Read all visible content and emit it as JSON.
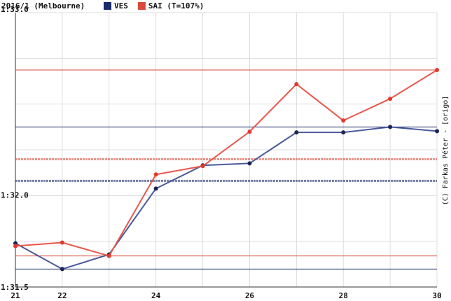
{
  "chart_data": {
    "type": "line",
    "title": "2016/1 (Melbourne)",
    "credit": "(C) Farkas Péter - [origo]",
    "x": [
      21,
      22,
      23,
      24,
      25,
      26,
      27,
      28,
      29,
      30
    ],
    "series": [
      {
        "name": "VES",
        "color": "#4a5a9a",
        "marker_color": "#1a2456",
        "ref_color": "#1a2a6a",
        "values": [
          91.739,
          91.598,
          91.678,
          92.038,
          92.165,
          92.176,
          92.345,
          92.345,
          92.375,
          92.352
        ],
        "max": 92.375,
        "min": 91.598,
        "mean": 92.08
      },
      {
        "name": "SAI (T=107%)",
        "color": "#e8564a",
        "marker_color": "#e03a2e",
        "ref_color": "#d84a3a",
        "values": [
          91.724,
          91.743,
          91.67,
          92.115,
          92.161,
          92.349,
          92.609,
          92.41,
          92.529,
          92.686
        ],
        "max": 92.686,
        "min": 91.67,
        "mean": 92.199
      }
    ],
    "xlim": [
      21,
      30
    ],
    "xticks": [
      21,
      22,
      24,
      26,
      28,
      30
    ],
    "minor_xticks": [
      23,
      25,
      27,
      29
    ],
    "ylim": [
      91.5,
      93.0
    ],
    "yticks": [
      {
        "value": 91.5,
        "label": "1:31.5"
      },
      {
        "value": 92.0,
        "label": "1:32.0"
      },
      {
        "value": 93.0,
        "label": "1:33.0"
      }
    ],
    "minor_yticks": [
      91.75,
      92.25,
      92.5,
      92.75
    ],
    "grid": true
  }
}
